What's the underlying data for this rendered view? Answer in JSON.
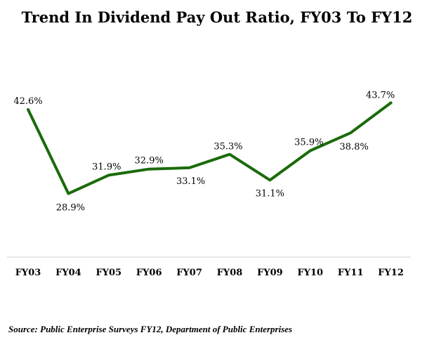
{
  "title": "Trend In Dividend Pay Out Ratio, FY03 To FY12",
  "source": "Source: Public Enterprise Surveys FY12, Department of Public Enterprises",
  "chart_data": {
    "type": "line",
    "title": "Trend In Dividend Pay Out Ratio, FY03 To FY12",
    "categories": [
      "FY03",
      "FY04",
      "FY05",
      "FY06",
      "FY07",
      "FY08",
      "FY09",
      "FY10",
      "FY11",
      "FY12"
    ],
    "series": [
      {
        "values": [
          42.6,
          28.9,
          31.9,
          32.9,
          33.1,
          35.3,
          31.1,
          35.9,
          38.8,
          43.7
        ],
        "labels": [
          "42.6%",
          "28.9%",
          "31.9%",
          "32.9%",
          "33.1%",
          "35.3%",
          "31.1%",
          "35.9%",
          "38.8%",
          "43.7%"
        ],
        "color": "#1a6b0a"
      }
    ],
    "ylim": [
      0,
      60
    ],
    "grid": false,
    "legend": "none",
    "axis_color": "#d0d0d0"
  }
}
